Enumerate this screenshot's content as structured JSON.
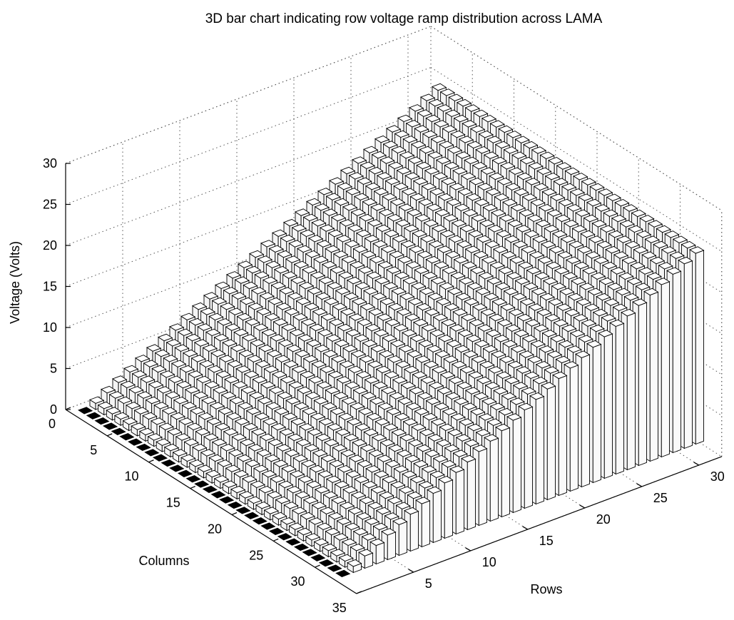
{
  "chart_data": {
    "type": "bar3d",
    "title": "3D bar chart indicating row voltage ramp distribution across LAMA",
    "zlabel": "Voltage (Volts)",
    "xlabel": "Columns",
    "ylabel": "Rows",
    "zlim": [
      0,
      30
    ],
    "xlim": [
      0,
      35
    ],
    "ylim": [
      0,
      32
    ],
    "z_ticks": [
      "0",
      "5",
      "10",
      "15",
      "20",
      "25",
      "30"
    ],
    "x_ticks": [
      "0",
      "5",
      "10",
      "15",
      "20",
      "25",
      "30",
      "35"
    ],
    "y_ticks": [
      "5",
      "10",
      "15",
      "20",
      "25",
      "30"
    ],
    "grid": true,
    "columns": 32,
    "rows": 32,
    "description_of_values": "voltage = (row - 1) * 0.75 V, identical for every column",
    "row_voltages": [
      0,
      0.75,
      1.5,
      2.25,
      3,
      3.75,
      4.5,
      5.25,
      6,
      6.75,
      7.5,
      8.25,
      9,
      9.75,
      10.5,
      11.25,
      12,
      12.75,
      13.5,
      14.25,
      15,
      15.75,
      16.5,
      17.25,
      18,
      18.75,
      19.5,
      20.25,
      21,
      21.75,
      22.5,
      23.25
    ]
  }
}
